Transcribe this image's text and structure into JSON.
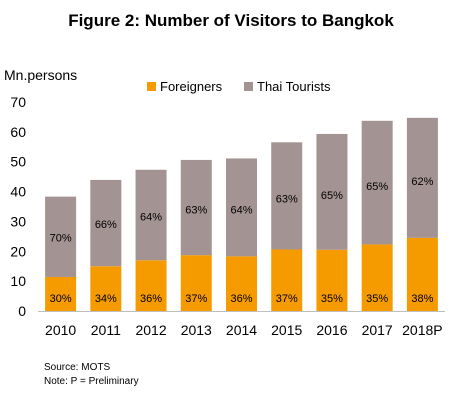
{
  "chart_data": {
    "type": "bar",
    "stacked": true,
    "title": "Figure 2:  Number of Visitors to Bangkok",
    "ylabel": "Mn.persons",
    "xlabel": "",
    "ylim": [
      0,
      70
    ],
    "yticks": [
      0,
      10,
      20,
      30,
      40,
      50,
      60,
      70
    ],
    "grid": false,
    "legend_position": "top",
    "categories": [
      "2010",
      "2011",
      "2012",
      "2013",
      "2014",
      "2015",
      "2016",
      "2017",
      "2018P"
    ],
    "series": [
      {
        "name": "Foreigners",
        "color": "#f59b00",
        "values": [
          11.4,
          15.0,
          17.0,
          18.7,
          18.3,
          20.6,
          20.5,
          22.3,
          24.5
        ],
        "labels": [
          "30%",
          "34%",
          "36%",
          "37%",
          "36%",
          "37%",
          "35%",
          "35%",
          "38%"
        ]
      },
      {
        "name": "Thai Tourists",
        "color": "#a39393",
        "values": [
          26.9,
          28.9,
          30.3,
          31.9,
          32.8,
          35.9,
          38.8,
          41.4,
          40.2
        ],
        "labels": [
          "70%",
          "66%",
          "64%",
          "63%",
          "64%",
          "63%",
          "65%",
          "65%",
          "62%"
        ]
      }
    ]
  },
  "notes": {
    "source": "Source: MOTS",
    "note": "Note: P = Preliminary"
  }
}
